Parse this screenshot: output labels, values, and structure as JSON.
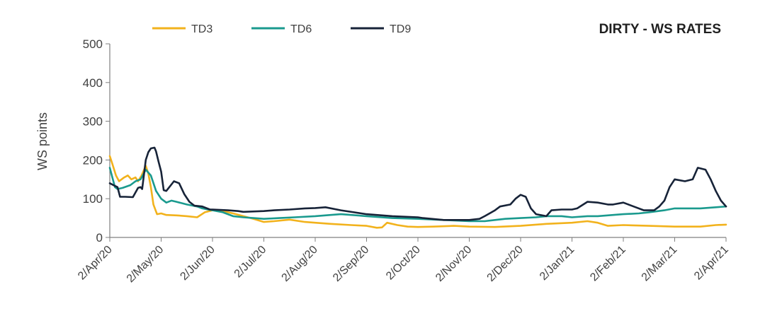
{
  "chart_data": {
    "type": "line",
    "title": "DIRTY - WS RATES",
    "xlabel": "",
    "ylabel": "WS points",
    "ylim": [
      0,
      500
    ],
    "yticks": [
      0,
      100,
      200,
      300,
      400,
      500
    ],
    "xlim": [
      0,
      12
    ],
    "xticks": [
      {
        "label": "2/Apr/20",
        "value": 0
      },
      {
        "label": "2/May/20",
        "value": 1
      },
      {
        "label": "2/Jun/20",
        "value": 2
      },
      {
        "label": "2/Jul/20",
        "value": 3
      },
      {
        "label": "2/Aug/20",
        "value": 4
      },
      {
        "label": "2/Sep/20",
        "value": 5
      },
      {
        "label": "2/Oct/20",
        "value": 6
      },
      {
        "label": "2/Nov/20",
        "value": 7
      },
      {
        "label": "2/Dec/20",
        "value": 8
      },
      {
        "label": "2/Jan/21",
        "value": 9
      },
      {
        "label": "2/Feb/21",
        "value": 10
      },
      {
        "label": "2/Mar/21",
        "value": 11
      },
      {
        "label": "2/Apr/21",
        "value": 12
      }
    ],
    "legend_position": "top",
    "series": [
      {
        "name": "TD3",
        "color": "#f2b21c",
        "x": [
          0,
          0.05,
          0.12,
          0.18,
          0.28,
          0.35,
          0.42,
          0.5,
          0.55,
          0.62,
          0.7,
          0.75,
          0.8,
          0.85,
          0.92,
          1.0,
          1.1,
          1.3,
          1.5,
          1.7,
          1.85,
          2.0,
          2.2,
          2.4,
          2.6,
          2.8,
          3.0,
          3.2,
          3.5,
          3.8,
          4.0,
          4.3,
          4.7,
          5.0,
          5.2,
          5.3,
          5.4,
          5.6,
          5.8,
          6.0,
          6.3,
          6.7,
          7.0,
          7.5,
          8.0,
          8.5,
          9.0,
          9.3,
          9.5,
          9.7,
          10.0,
          10.5,
          11.0,
          11.5,
          11.8,
          12.0
        ],
        "values": [
          210,
          190,
          160,
          145,
          155,
          160,
          150,
          155,
          145,
          160,
          185,
          165,
          130,
          85,
          60,
          62,
          58,
          57,
          55,
          52,
          65,
          70,
          68,
          62,
          55,
          48,
          40,
          42,
          46,
          40,
          38,
          35,
          32,
          30,
          25,
          26,
          38,
          32,
          28,
          27,
          28,
          30,
          28,
          27,
          30,
          35,
          38,
          42,
          38,
          30,
          32,
          30,
          28,
          28,
          32,
          33
        ]
      },
      {
        "name": "TD6",
        "color": "#1a9a8e",
        "x": [
          0,
          0.05,
          0.1,
          0.15,
          0.25,
          0.4,
          0.5,
          0.6,
          0.7,
          0.8,
          0.9,
          1.0,
          1.1,
          1.2,
          1.3,
          1.5,
          1.7,
          1.8,
          2.0,
          2.2,
          2.4,
          2.6,
          2.8,
          3.0,
          3.3,
          3.6,
          4.0,
          4.3,
          4.5,
          4.7,
          5.0,
          5.5,
          6.0,
          6.5,
          7.0,
          7.3,
          7.5,
          7.7,
          8.0,
          8.3,
          8.5,
          8.8,
          9.0,
          9.3,
          9.5,
          9.8,
          10.0,
          10.3,
          10.5,
          10.8,
          11.0,
          11.5,
          11.8,
          12.0
        ],
        "values": [
          180,
          155,
          130,
          125,
          128,
          135,
          145,
          150,
          175,
          160,
          120,
          100,
          90,
          95,
          92,
          85,
          80,
          75,
          70,
          65,
          55,
          52,
          50,
          48,
          50,
          52,
          55,
          58,
          60,
          58,
          55,
          50,
          48,
          45,
          42,
          42,
          45,
          48,
          50,
          52,
          55,
          55,
          52,
          55,
          55,
          58,
          60,
          62,
          65,
          70,
          75,
          75,
          78,
          80
        ]
      },
      {
        "name": "TD9",
        "color": "#172338",
        "x": [
          0,
          0.1,
          0.15,
          0.2,
          0.3,
          0.45,
          0.55,
          0.6,
          0.63,
          0.7,
          0.75,
          0.8,
          0.87,
          0.9,
          0.95,
          1.0,
          1.05,
          1.1,
          1.25,
          1.35,
          1.45,
          1.55,
          1.65,
          1.8,
          1.95,
          2.0,
          2.3,
          2.5,
          2.6,
          3.0,
          3.2,
          3.5,
          3.8,
          4.0,
          4.2,
          4.5,
          5.0,
          5.5,
          6.0,
          6.1,
          6.5,
          7.0,
          7.2,
          7.3,
          7.5,
          7.6,
          7.8,
          7.9,
          8.0,
          8.1,
          8.2,
          8.3,
          8.5,
          8.6,
          8.8,
          9.0,
          9.1,
          9.3,
          9.5,
          9.7,
          9.8,
          10.0,
          10.2,
          10.4,
          10.6,
          10.7,
          10.8,
          10.9,
          11.0,
          11.2,
          11.35,
          11.45,
          11.6,
          11.7,
          11.8,
          11.9,
          12.0
        ],
        "values": [
          140,
          133,
          130,
          105,
          105,
          104,
          128,
          130,
          125,
          200,
          220,
          230,
          232,
          222,
          195,
          170,
          122,
          120,
          145,
          140,
          112,
          92,
          82,
          80,
          72,
          72,
          70,
          68,
          66,
          68,
          70,
          72,
          75,
          76,
          78,
          70,
          60,
          55,
          52,
          50,
          45,
          45,
          48,
          55,
          70,
          80,
          85,
          100,
          110,
          105,
          75,
          60,
          55,
          70,
          72,
          72,
          75,
          92,
          90,
          85,
          85,
          90,
          80,
          70,
          70,
          80,
          95,
          130,
          150,
          145,
          150,
          180,
          175,
          150,
          120,
          95,
          80
        ]
      }
    ]
  }
}
